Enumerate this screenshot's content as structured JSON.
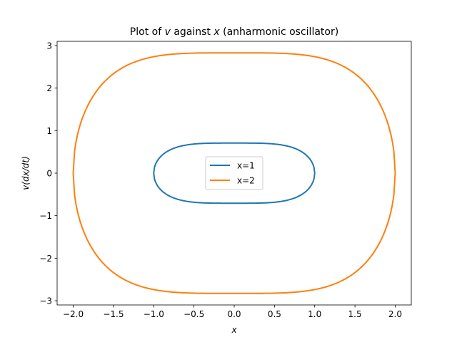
{
  "chart_data": {
    "type": "line",
    "title_parts": [
      {
        "text": "Plot of ",
        "italic": false
      },
      {
        "text": "v",
        "italic": true
      },
      {
        "text": " against ",
        "italic": false
      },
      {
        "text": "x",
        "italic": true
      },
      {
        "text": " (anharmonic oscillator)",
        "italic": false
      }
    ],
    "xlabel": "x",
    "ylabel": "v(dx/dt)",
    "xlim": [
      -2.2,
      2.2
    ],
    "ylim": [
      -3.1,
      3.1
    ],
    "xticks": [
      -2.0,
      -1.5,
      -1.0,
      -0.5,
      0.0,
      0.5,
      1.0,
      1.5,
      2.0
    ],
    "xtick_labels": [
      "−2.0",
      "−1.5",
      "−1.0",
      "−0.5",
      "0.0",
      "0.5",
      "1.0",
      "1.5",
      "2.0"
    ],
    "yticks": [
      -3,
      -2,
      -1,
      0,
      1,
      2,
      3
    ],
    "ytick_labels": [
      "−3",
      "−2",
      "−1",
      "0",
      "1",
      "2",
      "3"
    ],
    "grid": false,
    "legend_position": "center",
    "series": [
      {
        "name": "x=1",
        "color": "#1f77b4",
        "amplitude": 1,
        "vmax": 0.707
      },
      {
        "name": "x=2",
        "color": "#ff7f0e",
        "amplitude": 2,
        "vmax": 2.828
      }
    ]
  }
}
